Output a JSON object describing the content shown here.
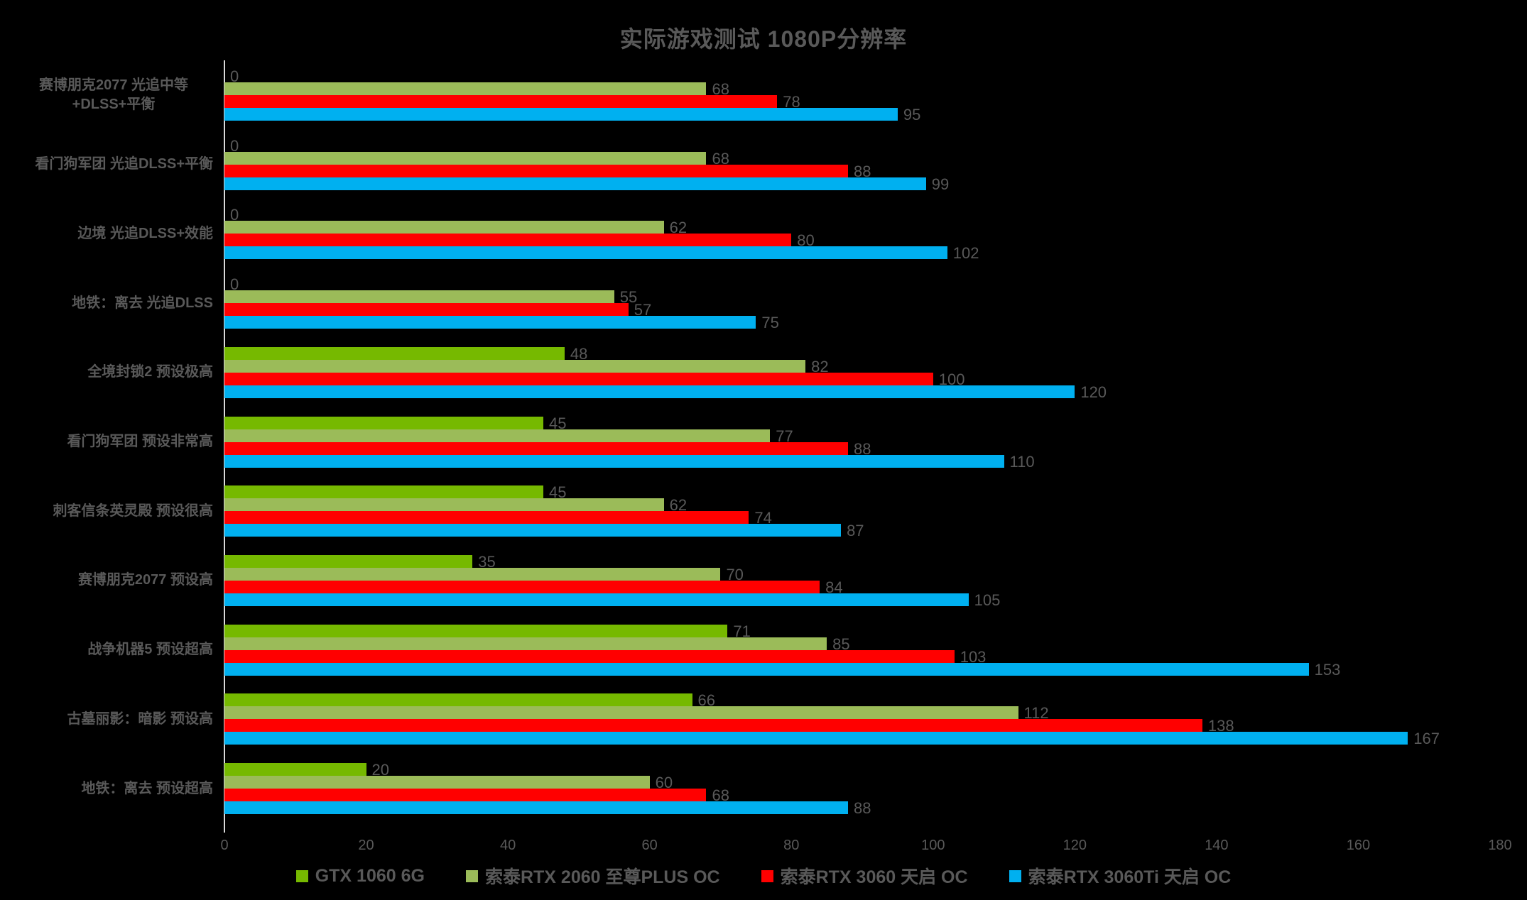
{
  "title": "实际游戏测试 1080P分辨率",
  "colors": {
    "background": "#000000",
    "text": "#595959",
    "axis_line": "#d9d9d9"
  },
  "chart_data": {
    "type": "bar",
    "orientation": "horizontal",
    "title": "实际游戏测试 1080P分辨率",
    "categories": [
      "赛博朋克2077 光追中等+DLSS+平衡",
      "看门狗军团 光追DLSS+平衡",
      "边境 光追DLSS+效能",
      "地铁：离去 光追DLSS",
      "全境封锁2 预设极高",
      "看门狗军团 预设非常高",
      "刺客信条英灵殿 预设很高",
      "赛博朋克2077 预设高",
      "战争机器5 预设超高",
      "古墓丽影：暗影 预设高",
      "地铁：离去 预设超高"
    ],
    "series": [
      {
        "name": "GTX 1060 6G",
        "color": "#76b900",
        "values": [
          0,
          0,
          0,
          0,
          48,
          45,
          45,
          35,
          71,
          66,
          20
        ]
      },
      {
        "name": "索泰RTX 2060 至尊PLUS OC",
        "color": "#9bbb59",
        "values": [
          68,
          68,
          62,
          55,
          82,
          77,
          62,
          70,
          85,
          112,
          60
        ]
      },
      {
        "name": "索泰RTX 3060 天启 OC",
        "color": "#ff0000",
        "values": [
          78,
          88,
          80,
          57,
          100,
          88,
          74,
          84,
          103,
          138,
          68
        ]
      },
      {
        "name": "索泰RTX 3060Ti 天启 OC",
        "color": "#00b0f0",
        "values": [
          95,
          99,
          102,
          75,
          120,
          110,
          87,
          105,
          153,
          167,
          88
        ]
      }
    ],
    "xlim": [
      0,
      180
    ],
    "xticks": [
      0,
      20,
      40,
      60,
      80,
      100,
      120,
      140,
      160,
      180
    ],
    "grid": false,
    "legend_position": "bottom",
    "value_labels": true
  }
}
